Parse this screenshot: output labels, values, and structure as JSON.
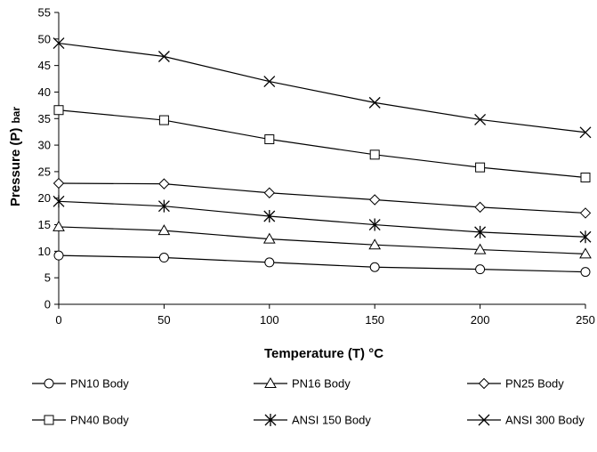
{
  "chart_data": {
    "type": "line",
    "xlabel": "Temperature (T) °C",
    "ylabel_main": "Pressure (P)",
    "ylabel_unit": "bar",
    "x": [
      0,
      50,
      100,
      150,
      200,
      250
    ],
    "xlim": [
      0,
      250
    ],
    "ylim": [
      0,
      55
    ],
    "xticks": [
      "0",
      "50",
      "100",
      "150",
      "200",
      "250"
    ],
    "yticks": [
      "0",
      "5",
      "10",
      "15",
      "20",
      "25",
      "30",
      "35",
      "40",
      "45",
      "50",
      "55"
    ],
    "grid": false,
    "legend_placement": "bottom",
    "series": [
      {
        "name": "PN10 Body",
        "marker": "circle",
        "values": [
          9.2,
          8.8,
          7.9,
          7.0,
          6.6,
          6.1
        ]
      },
      {
        "name": "PN16 Body",
        "marker": "triangle",
        "values": [
          14.6,
          13.9,
          12.3,
          11.2,
          10.3,
          9.5
        ]
      },
      {
        "name": "PN25 Body",
        "marker": "diamond",
        "values": [
          22.8,
          22.7,
          21.0,
          19.7,
          18.3,
          17.2
        ]
      },
      {
        "name": "PN40 Body",
        "marker": "square",
        "values": [
          36.6,
          34.7,
          31.1,
          28.2,
          25.8,
          23.9
        ]
      },
      {
        "name": "ANSI 150 Body",
        "marker": "star",
        "values": [
          19.4,
          18.5,
          16.6,
          15.0,
          13.6,
          12.7
        ]
      },
      {
        "name": "ANSI 300 Body",
        "marker": "x",
        "values": [
          49.2,
          46.7,
          42.0,
          38.0,
          34.8,
          32.4
        ]
      }
    ]
  }
}
